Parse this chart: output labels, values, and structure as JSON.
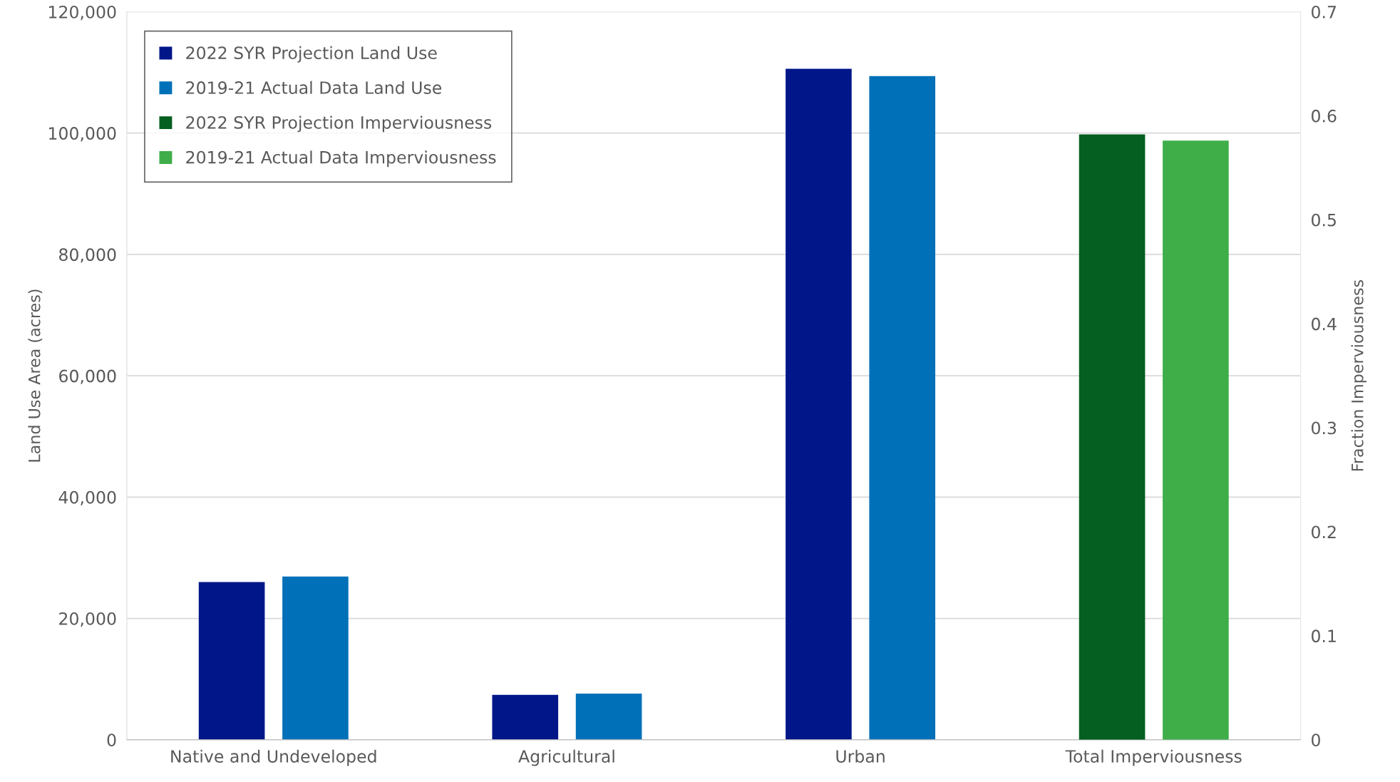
{
  "chart_data": {
    "type": "bar",
    "categories": [
      "Native and Undeveloped",
      "Agricultural",
      "Urban",
      "Total Imperviousness"
    ],
    "series": [
      {
        "name": "2022 SYR Projection Land Use",
        "color": "#001689",
        "values": [
          26000,
          7400,
          110600,
          null
        ]
      },
      {
        "name": "2019-21 Actual Data Land Use",
        "color": "#0070b8",
        "values": [
          26900,
          7600,
          109400,
          null
        ]
      },
      {
        "name": "2022 SYR Projection Imperviousness",
        "color": "#045f20",
        "values": [
          null,
          null,
          null,
          0.582
        ],
        "axis": "y2"
      },
      {
        "name": "2019-21 Actual Data Imperviousness",
        "color": "#3fae49",
        "values": [
          null,
          null,
          null,
          0.576
        ],
        "axis": "y2"
      }
    ],
    "ylabel": "Land Use Area (acres)",
    "y2label": "Fraction Imperviousness",
    "ylim": [
      0,
      120000
    ],
    "yticks": [
      {
        "value": 0,
        "label": "0"
      },
      {
        "value": 20000,
        "label": "20,000"
      },
      {
        "value": 40000,
        "label": "40,000"
      },
      {
        "value": 60000,
        "label": "60,000"
      },
      {
        "value": 80000,
        "label": "80,000"
      },
      {
        "value": 100000,
        "label": "100,000"
      },
      {
        "value": 120000,
        "label": "120,000"
      }
    ],
    "y2lim": [
      0,
      0.7
    ],
    "y2ticks": [
      0,
      0.1,
      0.2,
      0.3,
      0.4,
      0.5,
      0.6,
      0.7
    ],
    "grid": "y",
    "legend": "top left"
  }
}
